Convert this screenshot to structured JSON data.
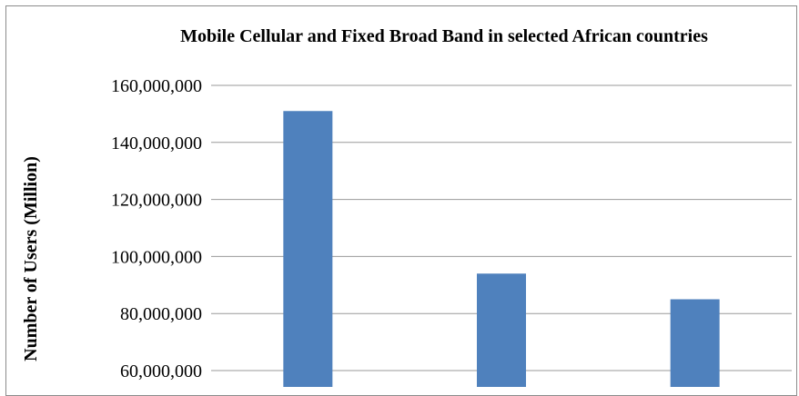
{
  "chart_data": {
    "type": "bar",
    "title": "Mobile Cellular and Fixed Broad Band in selected African countries",
    "ylabel": "Number of Users (Million)",
    "xlabel": "",
    "categories": [
      "",
      "",
      ""
    ],
    "values": [
      151000000,
      94000000,
      85000000
    ],
    "y_tick_labels": [
      "160,000,000",
      "140,000,000",
      "120,000,000",
      "100,000,000",
      "80,000,000",
      "60,000,000"
    ],
    "ylim": [
      60000000,
      160000000
    ],
    "grid": true,
    "bar_color": "#4f81bd"
  }
}
